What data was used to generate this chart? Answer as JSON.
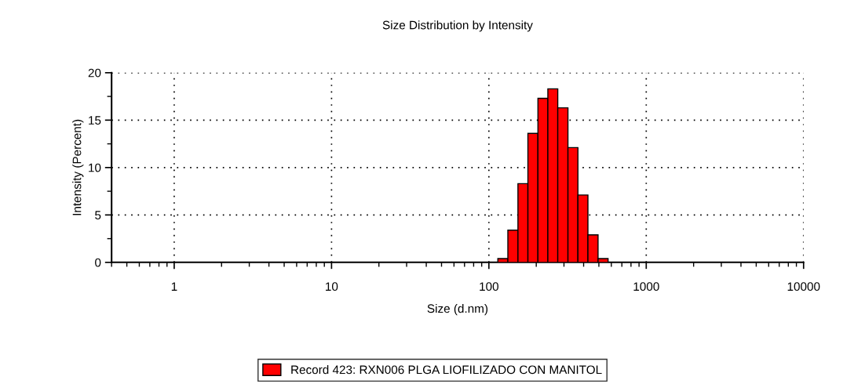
{
  "chart_data": {
    "type": "histogram",
    "title": "Size Distribution by Intensity",
    "xlabel": "Size (d.nm)",
    "ylabel": "Intensity (Percent)",
    "log": "x",
    "xlim": [
      0.4,
      10000
    ],
    "xticks": [
      1,
      10,
      100,
      1000,
      10000
    ],
    "ylim": [
      0,
      20
    ],
    "yticks": [
      0,
      5,
      10,
      15,
      20
    ],
    "grid": true,
    "legend": "bottom",
    "bins": [
      114,
      132,
      153,
      177,
      205,
      237,
      274,
      318,
      368,
      426,
      494,
      572
    ],
    "series": [
      {
        "name": "Record 423: RXN006 PLGA LIOFILIZADO CON MANITOL",
        "color": "#ff0000",
        "values": [
          0.4,
          3.4,
          8.3,
          13.6,
          17.3,
          18.3,
          16.3,
          12.1,
          7.1,
          2.9,
          0.4
        ]
      }
    ]
  }
}
